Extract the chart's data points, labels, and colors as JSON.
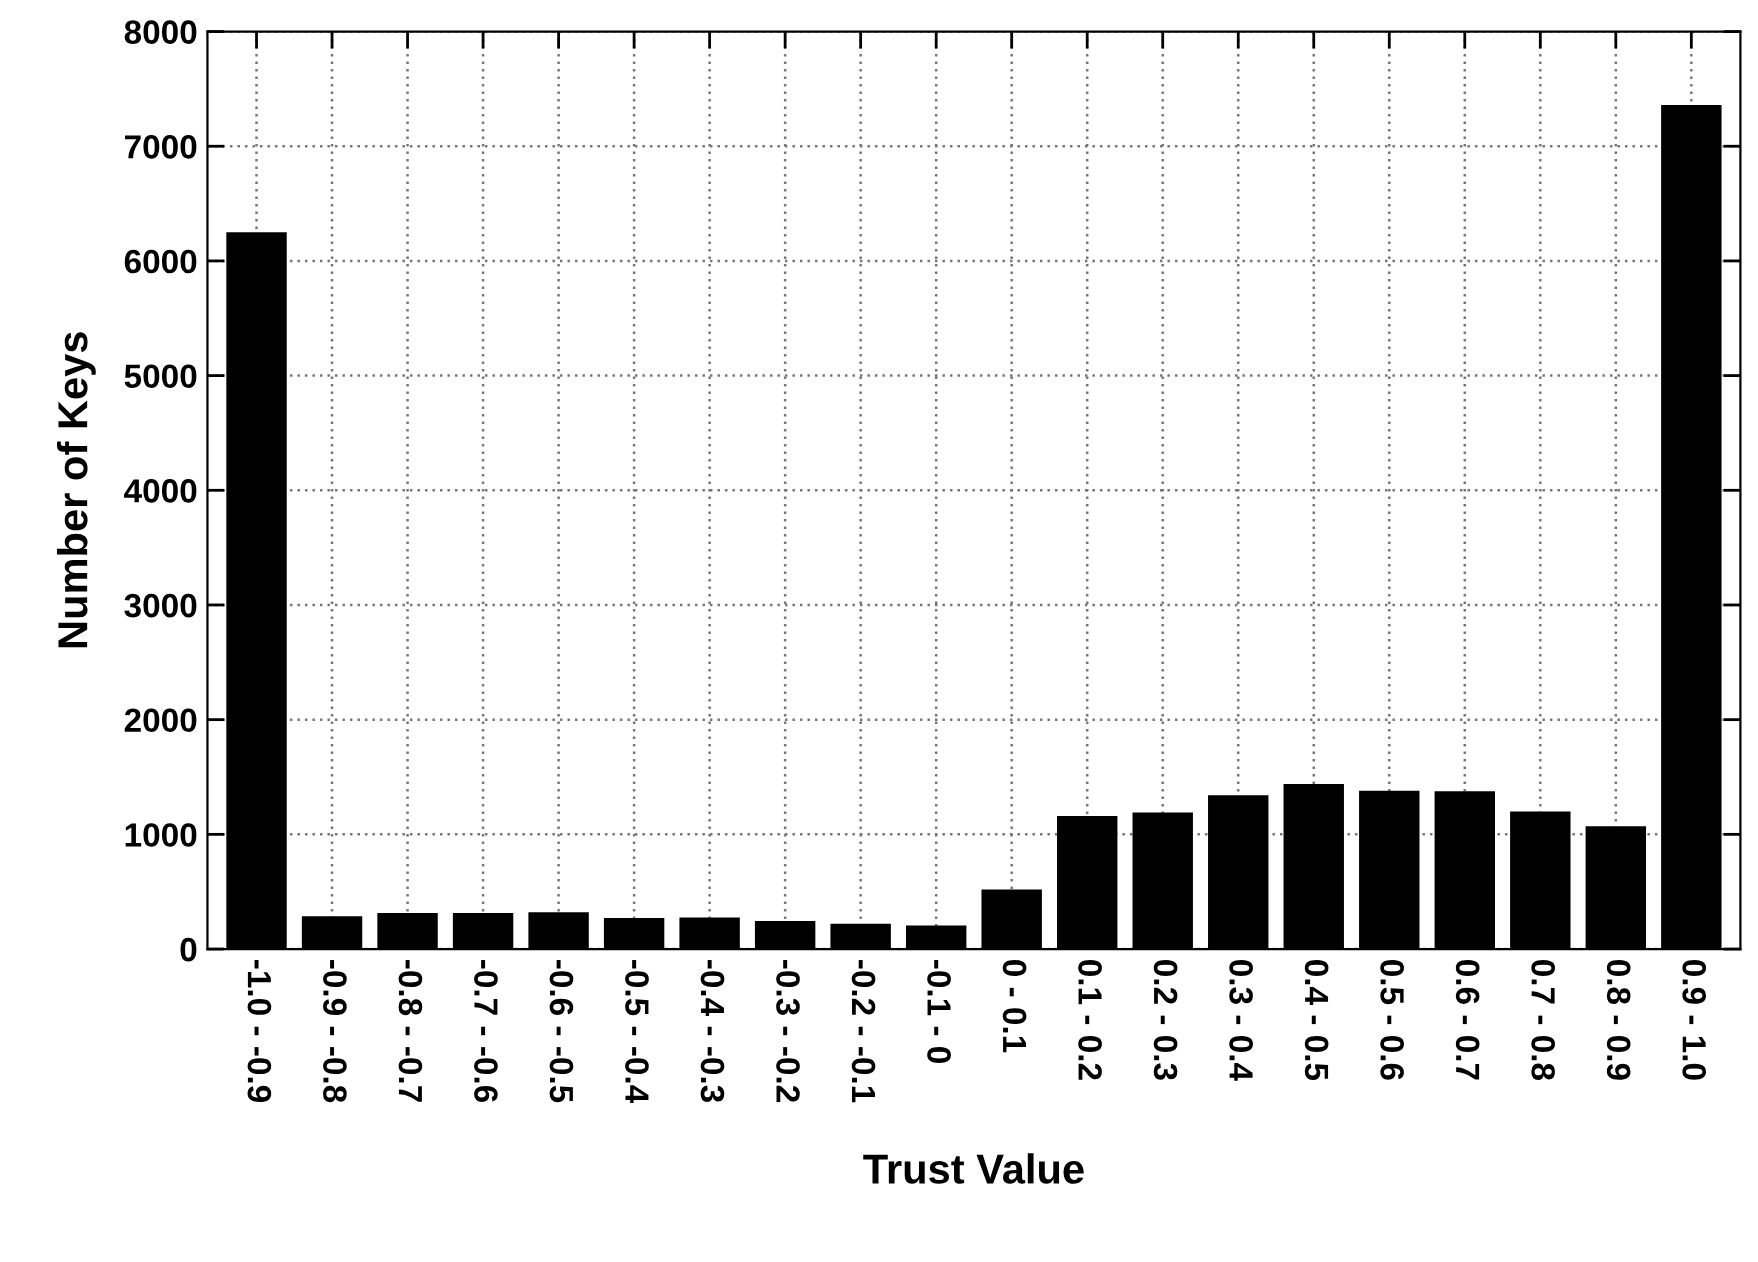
{
  "chart_data": {
    "type": "bar",
    "xlabel": "Trust Value",
    "ylabel": "Number of Keys",
    "categories": [
      "-1.0 - -0.9",
      "-0.9 - -0.8",
      "-0.8 - -0.7",
      "-0.7 - -0.6",
      "-0.6 - -0.5",
      "-0.5 - -0.4",
      "-0.4 - -0.3",
      "-0.3 - -0.2",
      "-0.2 - -0.1",
      "-0.1 - 0",
      "0 - 0.1",
      "0.1 - 0.2",
      "0.2 - 0.3",
      "0.3 - 0.4",
      "0.4 - 0.5",
      "0.5 - 0.6",
      "0.6 - 0.7",
      "0.7 - 0.8",
      "0.8 - 0.9",
      "0.9 - 1.0"
    ],
    "values": [
      6250,
      285,
      315,
      315,
      320,
      270,
      275,
      245,
      220,
      205,
      520,
      1160,
      1190,
      1340,
      1440,
      1380,
      1375,
      1200,
      1070,
      7360
    ],
    "color": "#000000",
    "ylim": [
      0,
      8000
    ],
    "yticks": [
      0,
      1000,
      2000,
      3000,
      4000,
      5000,
      6000,
      7000,
      8000
    ],
    "grid": true,
    "legend": false
  }
}
